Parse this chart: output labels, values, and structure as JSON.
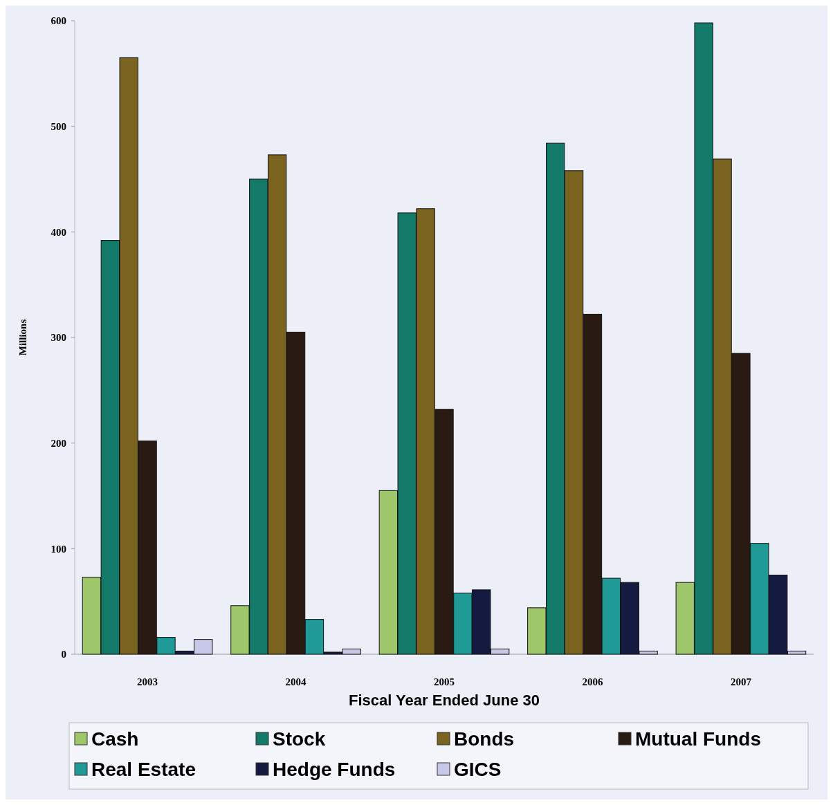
{
  "chart_data": {
    "type": "bar",
    "xlabel": "Fiscal Year Ended June 30",
    "ylabel": "Millions",
    "categories": [
      "2003",
      "2004",
      "2005",
      "2006",
      "2007"
    ],
    "ylim": [
      0,
      600
    ],
    "yticks": [
      0,
      100,
      200,
      300,
      400,
      500,
      600
    ],
    "grid": false,
    "legend": "bottom",
    "series": [
      {
        "name": "Cash",
        "color": "#9dc76a",
        "values": [
          73,
          46,
          155,
          44,
          68
        ]
      },
      {
        "name": "Stock",
        "color": "#137a6a",
        "values": [
          392,
          450,
          418,
          484,
          598
        ]
      },
      {
        "name": "Bonds",
        "color": "#7a6420",
        "values": [
          565,
          473,
          422,
          458,
          469
        ]
      },
      {
        "name": "Mutual Funds",
        "color": "#2a1a14",
        "values": [
          202,
          305,
          232,
          322,
          285
        ]
      },
      {
        "name": "Real Estate",
        "color": "#1f9a96",
        "values": [
          16,
          33,
          58,
          72,
          105
        ]
      },
      {
        "name": "Hedge Funds",
        "color": "#141a40",
        "values": [
          3,
          2,
          61,
          68,
          75
        ]
      },
      {
        "name": "GICS",
        "color": "#c8c8e8",
        "values": [
          14,
          5,
          5,
          3,
          3
        ]
      }
    ]
  }
}
